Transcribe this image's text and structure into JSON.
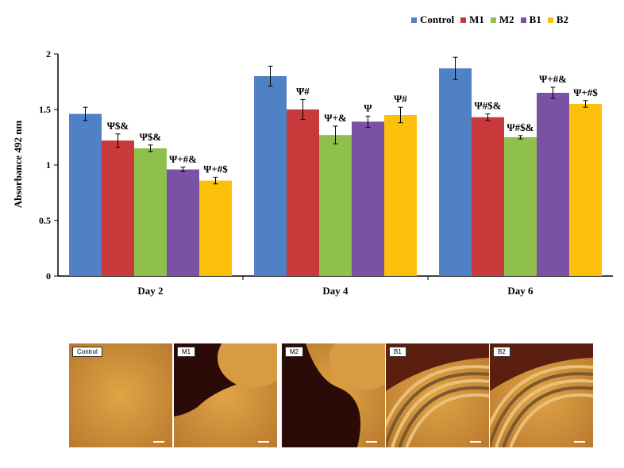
{
  "legend": {
    "entries": [
      {
        "name": "Control",
        "color": "#4f81c4"
      },
      {
        "name": "M1",
        "color": "#c8393b"
      },
      {
        "name": "M2",
        "color": "#8fbf4c"
      },
      {
        "name": "B1",
        "color": "#7952a6"
      },
      {
        "name": "B2",
        "color": "#fcc00a"
      }
    ]
  },
  "chart_data": {
    "type": "bar",
    "ylabel": "Absorbance 492 nm",
    "xlabel": "",
    "ylim": [
      0,
      2
    ],
    "yticks": [
      "0",
      "0.5",
      "1",
      "1.5",
      "2"
    ],
    "categories": [
      "Day 2",
      "Day 4",
      "Day 6"
    ],
    "grid": false,
    "legend_position": "top-right",
    "series": [
      {
        "name": "Control",
        "color": "#4f81c4",
        "values": [
          1.46,
          1.8,
          1.87
        ],
        "errors": [
          0.06,
          0.09,
          0.1
        ],
        "annotations": [
          "",
          "",
          ""
        ]
      },
      {
        "name": "M1",
        "color": "#c8393b",
        "values": [
          1.22,
          1.5,
          1.43
        ],
        "errors": [
          0.06,
          0.09,
          0.03
        ],
        "annotations": [
          "Ψ$&",
          "Ψ#",
          "Ψ#$&"
        ]
      },
      {
        "name": "M2",
        "color": "#8fbf4c",
        "values": [
          1.15,
          1.27,
          1.25
        ],
        "errors": [
          0.03,
          0.08,
          0.015
        ],
        "annotations": [
          "Ψ$&",
          "Ψ+&",
          "Ψ#$&"
        ]
      },
      {
        "name": "B1",
        "color": "#7952a6",
        "values": [
          0.96,
          1.39,
          1.65
        ],
        "errors": [
          0.02,
          0.05,
          0.05
        ],
        "annotations": [
          "Ψ+#&",
          "Ψ",
          "Ψ+#&"
        ]
      },
      {
        "name": "B2",
        "color": "#fcc00a",
        "values": [
          0.86,
          1.45,
          1.55
        ],
        "errors": [
          0.03,
          0.07,
          0.03
        ],
        "annotations": [
          "Ψ+#$",
          "Ψ#",
          "Ψ+#$"
        ]
      }
    ]
  },
  "micrographs": [
    {
      "label": "Control",
      "scene": "uniform"
    },
    {
      "label": "M1",
      "scene": "dark-hole"
    },
    {
      "label": "M2",
      "scene": "dark-hole"
    },
    {
      "label": "B1",
      "scene": "arcs"
    },
    {
      "label": "B2",
      "scene": "arcs"
    }
  ]
}
